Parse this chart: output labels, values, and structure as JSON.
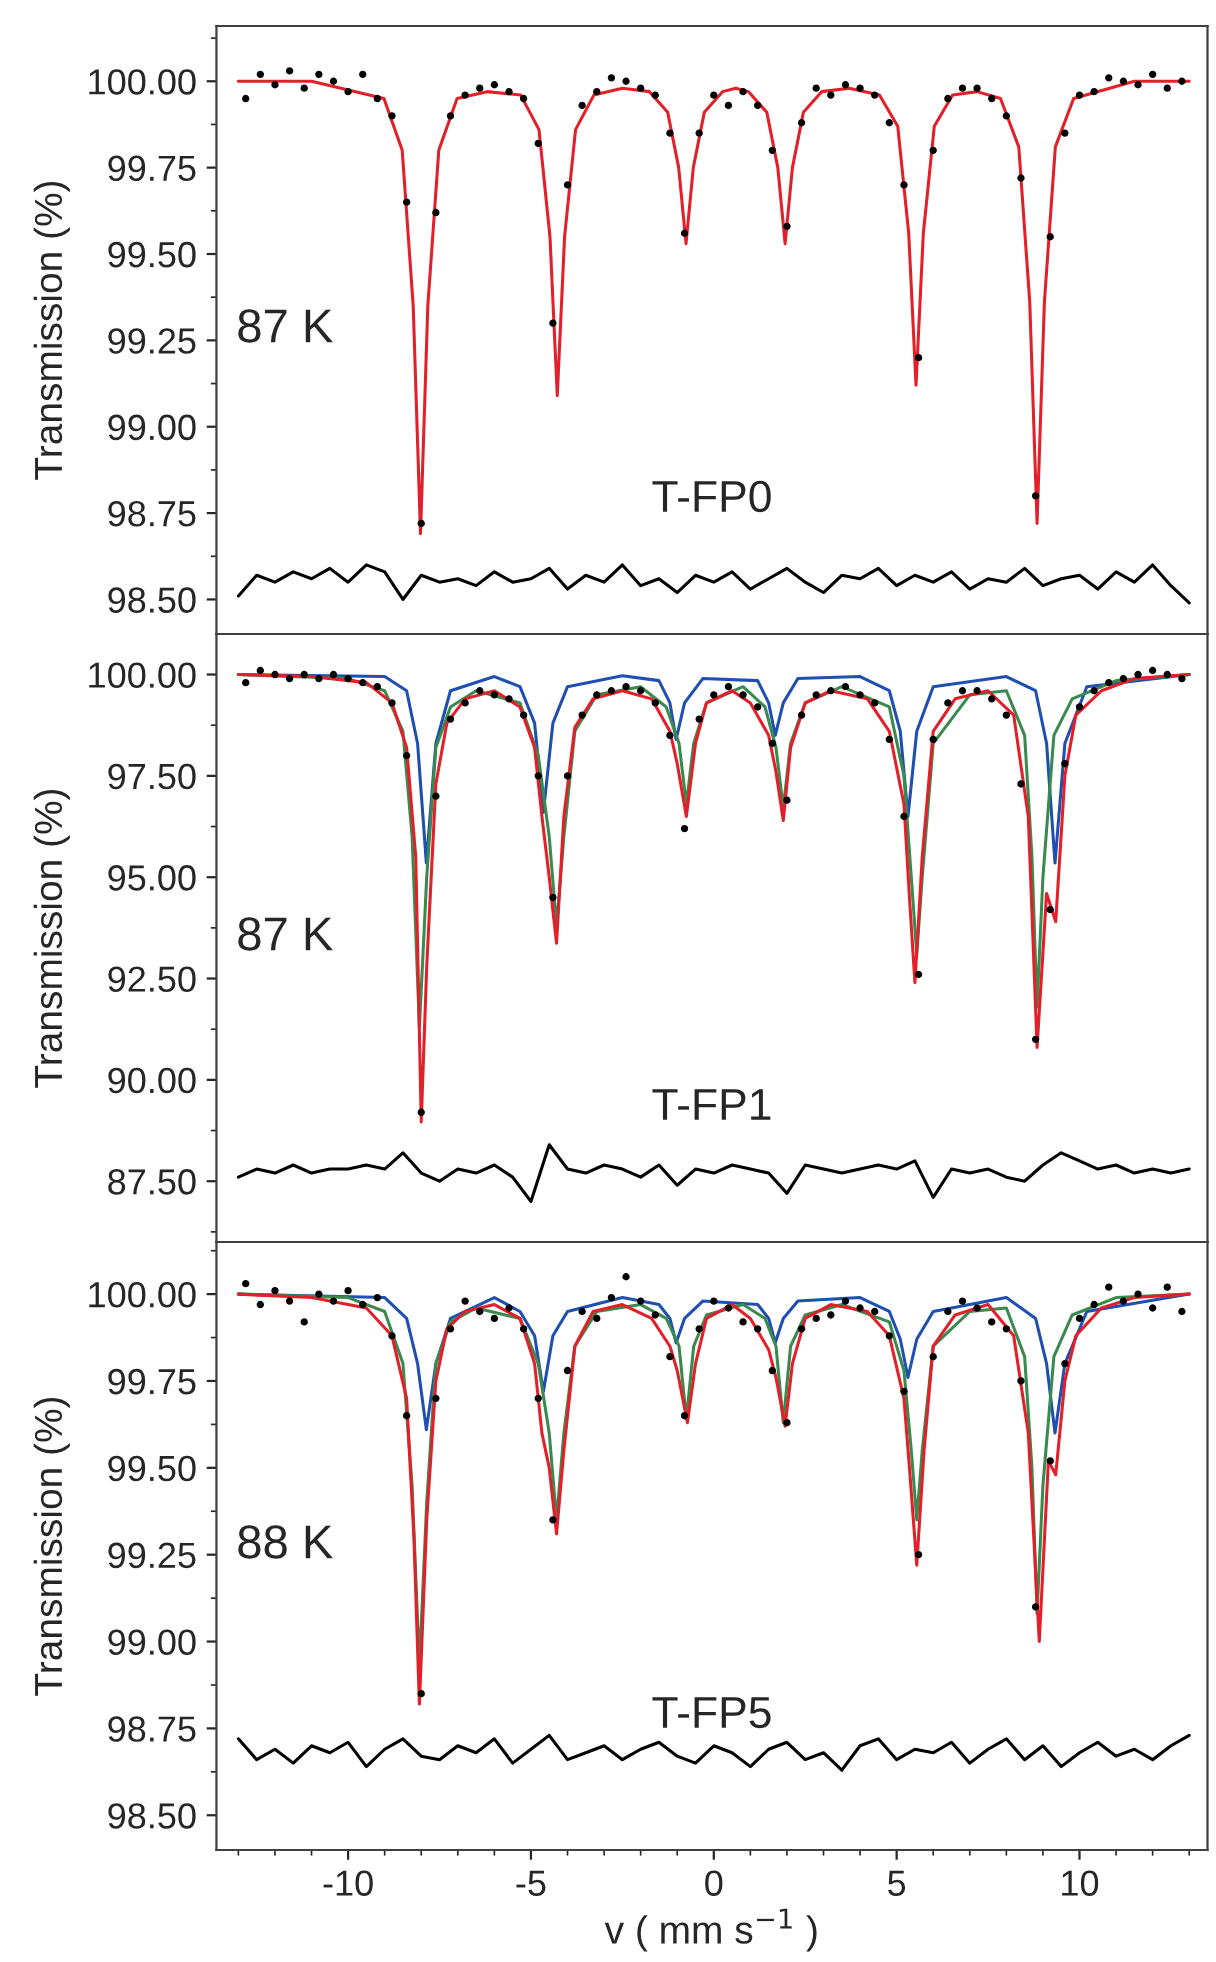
{
  "chart_data": [
    {
      "type": "line",
      "ylabel": "Transmission (%)",
      "xlim": [
        -13.6,
        13.5
      ],
      "xticks": [
        -10,
        -5,
        0,
        5,
        10
      ],
      "tick_labels": "y",
      "ylim": [
        98.4,
        100.16
      ],
      "yticks": [
        {
          "value": 98.5,
          "label": "98.50"
        },
        {
          "value": 98.75,
          "label": "98.75"
        },
        {
          "value": 99.0,
          "label": "99.00"
        },
        {
          "value": 99.25,
          "label": "99.25"
        },
        {
          "value": 99.5,
          "label": "99.50"
        },
        {
          "value": 99.75,
          "label": "99.75"
        },
        {
          "value": 100.0,
          "label": "100.00"
        }
      ],
      "annotations": [
        "87 K",
        "T-FP0"
      ],
      "series": [
        {
          "type": "scatter",
          "color": "#000000",
          "x": [
            -12.8,
            -12.4,
            -12.0,
            -11.6,
            -11.2,
            -10.8,
            -10.4,
            -10.0,
            -9.6,
            -9.2,
            -8.8,
            -8.4,
            -8.0,
            -7.6,
            -7.2,
            -6.8,
            -6.4,
            -6.0,
            -5.6,
            -5.2,
            -4.8,
            -4.4,
            -4.0,
            -3.6,
            -3.2,
            -2.8,
            -2.4,
            -2.0,
            -1.6,
            -1.2,
            -0.8,
            -0.4,
            0.0,
            0.4,
            0.8,
            1.2,
            1.6,
            2.0,
            2.4,
            2.8,
            3.2,
            3.6,
            4.0,
            4.4,
            4.8,
            5.2,
            5.6,
            6.0,
            6.4,
            6.8,
            7.2,
            7.6,
            8.0,
            8.4,
            8.8,
            9.2,
            9.6,
            10.0,
            10.4,
            10.8,
            11.2,
            11.6,
            12.0,
            12.4,
            12.8
          ],
          "values": [
            99.95,
            100.02,
            99.99,
            100.03,
            99.98,
            100.02,
            100.0,
            99.97,
            100.02,
            99.95,
            99.9,
            99.65,
            98.72,
            99.62,
            99.9,
            99.96,
            99.98,
            99.99,
            99.97,
            99.95,
            99.82,
            99.3,
            99.7,
            99.93,
            99.97,
            100.01,
            100.0,
            99.98,
            99.96,
            99.85,
            99.56,
            99.85,
            99.96,
            99.93,
            99.97,
            99.93,
            99.8,
            99.58,
            99.88,
            99.98,
            99.96,
            99.99,
            99.98,
            99.96,
            99.88,
            99.7,
            99.2,
            99.8,
            99.95,
            99.98,
            99.98,
            99.95,
            99.9,
            99.72,
            98.8,
            99.55,
            99.85,
            99.96,
            99.97,
            100.01,
            100.0,
            99.99,
            100.02,
            99.98,
            100.0
          ]
        },
        {
          "type": "line",
          "color": "#e3202a",
          "x": [
            -13,
            -11,
            -9.02,
            -8.52,
            -8.22,
            -8.02,
            -7.82,
            -7.52,
            -7.02,
            -6.2,
            -5.28,
            -4.78,
            -4.48,
            -4.28,
            -4.08,
            -3.78,
            -3.28,
            -2.5,
            -1.76,
            -1.26,
            -0.96,
            -0.76,
            -0.56,
            -0.26,
            0.24,
            0.6,
            0.95,
            1.45,
            1.75,
            1.95,
            2.15,
            2.45,
            2.95,
            3.7,
            4.53,
            5.03,
            5.33,
            5.53,
            5.73,
            6.03,
            6.53,
            7.2,
            7.84,
            8.34,
            8.64,
            8.84,
            9.04,
            9.34,
            9.84,
            11.5,
            13
          ],
          "values": [
            100.0,
            100.0,
            99.95,
            99.8,
            99.35,
            98.69,
            99.35,
            99.8,
            99.95,
            99.97,
            99.96,
            99.86,
            99.55,
            99.09,
            99.55,
            99.86,
            99.96,
            99.98,
            99.97,
            99.91,
            99.75,
            99.53,
            99.75,
            99.91,
            99.97,
            99.98,
            99.97,
            99.91,
            99.75,
            99.53,
            99.75,
            99.91,
            99.97,
            99.98,
            99.96,
            99.87,
            99.56,
            99.12,
            99.56,
            99.87,
            99.96,
            99.97,
            99.95,
            99.81,
            99.36,
            98.72,
            99.36,
            99.81,
            99.95,
            100.0,
            100.0
          ]
        },
        {
          "type": "line",
          "color": "#000000",
          "x": [
            -13,
            -12.5,
            -12,
            -11.5,
            -11,
            -10.5,
            -10,
            -9.5,
            -9,
            -8.5,
            -8,
            -7.5,
            -7,
            -6.5,
            -6,
            -5.5,
            -5,
            -4.5,
            -4,
            -3.5,
            -3,
            -2.5,
            -2,
            -1.5,
            -1,
            -0.5,
            0,
            0.5,
            1,
            1.5,
            2,
            2.5,
            3,
            3.5,
            4,
            4.5,
            5,
            5.5,
            6,
            6.5,
            7,
            7.5,
            8,
            8.5,
            9,
            9.5,
            10,
            10.5,
            11,
            11.5,
            12,
            12.5,
            13
          ],
          "values": [
            98.51,
            98.57,
            98.55,
            98.58,
            98.56,
            98.59,
            98.55,
            98.6,
            98.58,
            98.5,
            98.57,
            98.55,
            98.56,
            98.54,
            98.58,
            98.55,
            98.56,
            98.59,
            98.53,
            98.57,
            98.55,
            98.6,
            98.54,
            98.56,
            98.52,
            98.57,
            98.55,
            98.58,
            98.53,
            98.56,
            98.59,
            98.55,
            98.52,
            98.57,
            98.56,
            98.59,
            98.54,
            98.57,
            98.55,
            98.58,
            98.53,
            98.56,
            98.55,
            98.59,
            98.54,
            98.56,
            98.57,
            98.53,
            98.58,
            98.55,
            98.6,
            98.54,
            98.49
          ]
        }
      ]
    },
    {
      "type": "line",
      "ylabel": "Transmission (%)",
      "xlim": [
        -13.6,
        13.5
      ],
      "xticks": [
        -10,
        -5,
        0,
        5,
        10
      ],
      "tick_labels": "y",
      "ylim": [
        86.0,
        101.0
      ],
      "yticks": [
        {
          "value": 87.5,
          "label": "87.50"
        },
        {
          "value": 90.0,
          "label": "90.00"
        },
        {
          "value": 92.5,
          "label": "92.50"
        },
        {
          "value": 95.0,
          "label": "95.00"
        },
        {
          "value": 97.5,
          "label": "97.50"
        },
        {
          "value": 100.0,
          "label": "100.00"
        }
      ],
      "annotations": [
        "87 K",
        "T-FP1"
      ],
      "series": [
        {
          "type": "scatter",
          "color": "#000000",
          "x": [
            -12.8,
            -12.4,
            -12.0,
            -11.6,
            -11.2,
            -10.8,
            -10.4,
            -10.0,
            -9.6,
            -9.2,
            -8.8,
            -8.4,
            -8.0,
            -7.6,
            -7.2,
            -6.8,
            -6.4,
            -6.0,
            -5.6,
            -5.2,
            -4.8,
            -4.4,
            -4.0,
            -3.6,
            -3.2,
            -2.8,
            -2.4,
            -2.0,
            -1.6,
            -1.2,
            -0.8,
            -0.4,
            0.0,
            0.4,
            0.8,
            1.2,
            1.6,
            2.0,
            2.4,
            2.8,
            3.2,
            3.6,
            4.0,
            4.4,
            4.8,
            5.2,
            5.6,
            6.0,
            6.4,
            6.8,
            7.2,
            7.6,
            8.0,
            8.4,
            8.8,
            9.2,
            9.6,
            10.0,
            10.4,
            10.8,
            11.2,
            11.6,
            12.0,
            12.4,
            12.8
          ],
          "values": [
            99.8,
            100.1,
            100.0,
            99.9,
            100.0,
            99.9,
            100.0,
            99.9,
            99.8,
            99.7,
            99.3,
            98.0,
            89.2,
            97.0,
            98.9,
            99.3,
            99.6,
            99.5,
            99.4,
            99.0,
            97.5,
            94.5,
            97.5,
            99.0,
            99.5,
            99.6,
            99.7,
            99.6,
            99.3,
            98.5,
            96.2,
            98.9,
            99.5,
            99.7,
            99.5,
            99.2,
            98.3,
            96.9,
            99.0,
            99.5,
            99.6,
            99.7,
            99.5,
            99.3,
            98.4,
            96.5,
            92.6,
            98.4,
            99.3,
            99.6,
            99.6,
            99.4,
            99.0,
            97.3,
            91.0,
            94.2,
            97.8,
            99.2,
            99.6,
            99.8,
            99.9,
            100.0,
            100.1,
            100.0,
            99.9
          ]
        },
        {
          "type": "line",
          "color": "#1f4fb0",
          "x": [
            -13,
            -9,
            -8.4,
            -8.1,
            -7.86,
            -7.6,
            -7.2,
            -6,
            -5.3,
            -4.9,
            -4.66,
            -4.4,
            -4.0,
            -2.5,
            -1.5,
            -1.2,
            -1.03,
            -0.8,
            -0.3,
            1.2,
            1.5,
            1.68,
            1.9,
            2.3,
            4.0,
            4.8,
            5.1,
            5.31,
            5.55,
            6.0,
            8.0,
            8.8,
            9.1,
            9.33,
            9.6,
            10.2,
            13
          ],
          "values": [
            100.0,
            99.95,
            99.6,
            98.3,
            95.35,
            98.3,
            99.6,
            99.95,
            99.7,
            98.8,
            96.6,
            98.8,
            99.7,
            99.97,
            99.85,
            99.3,
            98.4,
            99.3,
            99.9,
            99.85,
            99.3,
            98.5,
            99.3,
            99.9,
            99.95,
            99.6,
            98.6,
            96.5,
            98.6,
            99.7,
            99.95,
            99.6,
            98.3,
            95.35,
            98.3,
            99.7,
            100.0
          ]
        },
        {
          "type": "line",
          "color": "#3a8a50",
          "x": [
            -13,
            -10,
            -9.0,
            -8.5,
            -8.25,
            -8.05,
            -7.85,
            -7.6,
            -7.2,
            -6.5,
            -5.3,
            -4.8,
            -4.5,
            -4.3,
            -4.1,
            -3.8,
            -3.2,
            -2.0,
            -1.3,
            -0.95,
            -0.75,
            -0.55,
            -0.2,
            0.8,
            1.4,
            1.7,
            1.9,
            2.1,
            2.5,
            3.5,
            4.8,
            5.2,
            5.4,
            5.55,
            5.7,
            6.0,
            7.0,
            8.0,
            8.5,
            8.7,
            8.84,
            9.0,
            9.3,
            9.8,
            11,
            13
          ],
          "values": [
            100.0,
            99.9,
            99.6,
            98.6,
            96.0,
            91.3,
            95.0,
            98.2,
            99.2,
            99.6,
            99.3,
            98.0,
            96.0,
            93.8,
            96.0,
            98.6,
            99.5,
            99.7,
            99.2,
            98.3,
            96.8,
            98.3,
            99.3,
            99.7,
            99.2,
            98.2,
            96.7,
            98.3,
            99.3,
            99.7,
            99.2,
            97.5,
            95.0,
            93.1,
            95.0,
            98.3,
            99.5,
            99.6,
            98.5,
            95.5,
            91.8,
            95.0,
            98.5,
            99.4,
            99.85,
            100.0
          ]
        },
        {
          "type": "line",
          "color": "#e3202a",
          "x": [
            -13,
            -11,
            -9.5,
            -8.8,
            -8.4,
            -8.15,
            -8.0,
            -7.85,
            -7.6,
            -7.3,
            -6.8,
            -6.0,
            -5.3,
            -4.9,
            -4.7,
            -4.5,
            -4.3,
            -4.1,
            -3.8,
            -3.3,
            -2.5,
            -1.7,
            -1.2,
            -1.0,
            -0.75,
            -0.5,
            -0.2,
            0.5,
            1.0,
            1.5,
            1.7,
            1.9,
            2.1,
            2.5,
            3.2,
            4.2,
            4.8,
            5.2,
            5.35,
            5.5,
            5.7,
            6.0,
            6.6,
            7.5,
            8.2,
            8.6,
            8.84,
            9.1,
            9.35,
            9.6,
            9.9,
            10.6,
            11.5,
            13
          ],
          "values": [
            100.0,
            99.95,
            99.8,
            99.3,
            98.2,
            95.5,
            88.96,
            92.8,
            97.3,
            98.8,
            99.4,
            99.6,
            99.2,
            98.2,
            96.5,
            95.0,
            93.37,
            96.5,
            98.7,
            99.4,
            99.6,
            99.4,
            98.6,
            97.8,
            96.5,
            98.3,
            99.3,
            99.6,
            99.3,
            98.5,
            97.6,
            96.4,
            98.2,
            99.3,
            99.6,
            99.4,
            98.6,
            96.8,
            94.5,
            92.4,
            95.5,
            98.6,
            99.4,
            99.6,
            99.0,
            96.5,
            90.8,
            94.6,
            93.9,
            97.5,
            99.0,
            99.6,
            99.9,
            100.0
          ]
        },
        {
          "type": "line",
          "color": "#000000",
          "x": [
            -13,
            -12.5,
            -12,
            -11.5,
            -11,
            -10.5,
            -10,
            -9.5,
            -9,
            -8.5,
            -8,
            -7.5,
            -7,
            -6.5,
            -6,
            -5.5,
            -5,
            -4.5,
            -4,
            -3.5,
            -3,
            -2.5,
            -2,
            -1.5,
            -1,
            -0.5,
            0,
            0.5,
            1,
            1.5,
            2,
            2.5,
            3,
            3.5,
            4,
            4.5,
            5,
            5.5,
            6,
            6.5,
            7,
            7.5,
            8,
            8.5,
            9,
            9.5,
            10,
            10.5,
            11,
            11.5,
            12,
            12.5,
            13
          ],
          "values": [
            87.6,
            87.8,
            87.7,
            87.9,
            87.7,
            87.8,
            87.8,
            87.9,
            87.8,
            88.2,
            87.7,
            87.5,
            87.8,
            87.7,
            87.9,
            87.6,
            87.0,
            88.4,
            87.8,
            87.7,
            87.9,
            87.8,
            87.6,
            87.9,
            87.4,
            87.8,
            87.7,
            87.9,
            87.8,
            87.7,
            87.2,
            87.9,
            87.8,
            87.7,
            87.8,
            87.9,
            87.8,
            88.0,
            87.1,
            87.8,
            87.7,
            87.8,
            87.6,
            87.5,
            87.9,
            88.2,
            88.0,
            87.8,
            87.9,
            87.7,
            87.8,
            87.7,
            87.8
          ]
        }
      ]
    },
    {
      "type": "line",
      "ylabel": "Transmission (%)",
      "xlabel": "v ( mm s$^{−1}$ )",
      "xlim": [
        -13.6,
        13.5
      ],
      "xticks": [
        -10,
        -5,
        0,
        5,
        10
      ],
      "ylim": [
        98.4,
        100.15
      ],
      "yticks": [
        {
          "value": 98.5,
          "label": "98.50"
        },
        {
          "value": 98.75,
          "label": "98.75"
        },
        {
          "value": 99.0,
          "label": "99.00"
        },
        {
          "value": 99.25,
          "label": "99.25"
        },
        {
          "value": 99.5,
          "label": "99.50"
        },
        {
          "value": 99.75,
          "label": "99.75"
        },
        {
          "value": 100.0,
          "label": "100.00"
        }
      ],
      "annotations": [
        "88 K",
        "T-FP5"
      ],
      "series": [
        {
          "type": "scatter",
          "color": "#000000",
          "x": [
            -12.8,
            -12.4,
            -12.0,
            -11.6,
            -11.2,
            -10.8,
            -10.4,
            -10.0,
            -9.6,
            -9.2,
            -8.8,
            -8.4,
            -8.0,
            -7.6,
            -7.2,
            -6.8,
            -6.4,
            -6.0,
            -5.6,
            -5.2,
            -4.8,
            -4.4,
            -4.0,
            -3.6,
            -3.2,
            -2.8,
            -2.4,
            -2.0,
            -1.6,
            -1.2,
            -0.8,
            -0.4,
            0.0,
            0.4,
            0.8,
            1.2,
            1.6,
            2.0,
            2.4,
            2.8,
            3.2,
            3.6,
            4.0,
            4.4,
            4.8,
            5.2,
            5.6,
            6.0,
            6.4,
            6.8,
            7.2,
            7.6,
            8.0,
            8.4,
            8.8,
            9.2,
            9.6,
            10.0,
            10.4,
            10.8,
            11.2,
            11.6,
            12.0,
            12.4,
            12.8
          ],
          "values": [
            100.03,
            99.97,
            100.01,
            99.98,
            99.92,
            100.0,
            99.98,
            100.01,
            99.97,
            99.99,
            99.88,
            99.65,
            98.85,
            99.7,
            99.9,
            99.98,
            99.95,
            99.93,
            99.96,
            99.9,
            99.7,
            99.35,
            99.78,
            99.95,
            99.93,
            99.99,
            100.05,
            99.98,
            99.94,
            99.82,
            99.65,
            99.9,
            99.98,
            99.96,
            99.92,
            99.9,
            99.78,
            99.63,
            99.9,
            99.93,
            99.94,
            99.98,
            99.96,
            99.95,
            99.88,
            99.72,
            99.25,
            99.82,
            99.95,
            99.98,
            99.96,
            99.92,
            99.9,
            99.75,
            99.1,
            99.52,
            99.8,
            99.93,
            99.97,
            100.02,
            99.98,
            100.0,
            99.96,
            100.02,
            99.95
          ]
        },
        {
          "type": "line",
          "color": "#1f4fb0",
          "x": [
            -13,
            -9,
            -8.4,
            -8.1,
            -7.86,
            -7.6,
            -7.2,
            -6,
            -5.3,
            -4.9,
            -4.66,
            -4.4,
            -4.0,
            -2.5,
            -1.5,
            -1.2,
            -1.03,
            -0.8,
            -0.3,
            1.2,
            1.5,
            1.68,
            1.9,
            2.3,
            4.0,
            4.8,
            5.1,
            5.31,
            5.55,
            6.0,
            8.0,
            8.8,
            9.1,
            9.33,
            9.6,
            10.2,
            13
          ],
          "values": [
            100.0,
            99.99,
            99.93,
            99.8,
            99.61,
            99.8,
            99.93,
            99.99,
            99.95,
            99.88,
            99.72,
            99.88,
            99.95,
            99.99,
            99.97,
            99.93,
            99.86,
            99.93,
            99.98,
            99.97,
            99.93,
            99.86,
            99.93,
            99.98,
            99.99,
            99.95,
            99.87,
            99.76,
            99.87,
            99.95,
            99.99,
            99.93,
            99.8,
            99.6,
            99.8,
            99.95,
            100.0
          ]
        },
        {
          "type": "line",
          "color": "#3a8a50",
          "x": [
            -13,
            -10,
            -9.0,
            -8.5,
            -8.25,
            -8.05,
            -7.85,
            -7.6,
            -7.2,
            -6.5,
            -5.3,
            -4.8,
            -4.5,
            -4.3,
            -4.1,
            -3.8,
            -3.2,
            -2.0,
            -1.3,
            -0.95,
            -0.75,
            -0.55,
            -0.2,
            0.8,
            1.4,
            1.7,
            1.9,
            2.1,
            2.5,
            3.5,
            4.8,
            5.2,
            5.4,
            5.55,
            5.7,
            6.0,
            7.0,
            8.0,
            8.5,
            8.7,
            8.84,
            9.0,
            9.3,
            9.8,
            11,
            13
          ],
          "values": [
            100.0,
            99.99,
            99.95,
            99.8,
            99.45,
            98.93,
            99.4,
            99.8,
            99.92,
            99.96,
            99.93,
            99.8,
            99.6,
            99.35,
            99.6,
            99.85,
            99.95,
            99.97,
            99.93,
            99.85,
            99.64,
            99.85,
            99.94,
            99.97,
            99.93,
            99.85,
            99.63,
            99.85,
            99.94,
            99.97,
            99.92,
            99.78,
            99.55,
            99.35,
            99.55,
            99.85,
            99.95,
            99.96,
            99.82,
            99.5,
            99.08,
            99.45,
            99.82,
            99.94,
            99.99,
            100.0
          ]
        },
        {
          "type": "line",
          "color": "#e3202a",
          "x": [
            -13,
            -11,
            -9.5,
            -8.8,
            -8.4,
            -8.2,
            -8.05,
            -7.85,
            -7.6,
            -7.3,
            -6.8,
            -6.0,
            -5.3,
            -4.9,
            -4.7,
            -4.5,
            -4.3,
            -4.1,
            -3.8,
            -3.3,
            -2.5,
            -1.7,
            -1.2,
            -1.0,
            -0.72,
            -0.5,
            -0.2,
            0.5,
            1.0,
            1.5,
            1.7,
            1.95,
            2.15,
            2.5,
            3.2,
            4.2,
            4.8,
            5.2,
            5.35,
            5.55,
            5.75,
            6.0,
            6.6,
            7.5,
            8.2,
            8.6,
            8.9,
            9.15,
            9.35,
            9.6,
            9.9,
            10.6,
            11.5,
            13
          ],
          "values": [
            100.0,
            99.99,
            99.96,
            99.88,
            99.7,
            99.3,
            98.82,
            99.35,
            99.75,
            99.9,
            99.95,
            99.97,
            99.93,
            99.8,
            99.6,
            99.5,
            99.31,
            99.55,
            99.85,
            99.95,
            99.97,
            99.93,
            99.85,
            99.78,
            99.63,
            99.8,
            99.93,
            99.97,
            99.93,
            99.84,
            99.76,
            99.62,
            99.8,
            99.93,
            99.97,
            99.95,
            99.88,
            99.7,
            99.5,
            99.22,
            99.55,
            99.85,
            99.94,
            99.97,
            99.88,
            99.6,
            99.0,
            99.52,
            99.48,
            99.75,
            99.88,
            99.96,
            99.99,
            100.0
          ]
        },
        {
          "type": "line",
          "color": "#000000",
          "x": [
            -13,
            -12.5,
            -12,
            -11.5,
            -11,
            -10.5,
            -10,
            -9.5,
            -9,
            -8.5,
            -8,
            -7.5,
            -7,
            -6.5,
            -6,
            -5.5,
            -5,
            -4.5,
            -4,
            -3.5,
            -3,
            -2.5,
            -2,
            -1.5,
            -1,
            -0.5,
            0,
            0.5,
            1,
            1.5,
            2,
            2.5,
            3,
            3.5,
            4,
            4.5,
            5,
            5.5,
            6,
            6.5,
            7,
            7.5,
            8,
            8.5,
            9,
            9.5,
            10,
            10.5,
            11,
            11.5,
            12,
            12.5,
            13
          ],
          "values": [
            98.72,
            98.66,
            98.69,
            98.65,
            98.7,
            98.68,
            98.71,
            98.64,
            98.69,
            98.72,
            98.67,
            98.66,
            98.7,
            98.68,
            98.72,
            98.65,
            98.69,
            98.73,
            98.66,
            98.68,
            98.7,
            98.66,
            98.69,
            98.71,
            98.67,
            98.65,
            98.7,
            98.68,
            98.64,
            98.69,
            98.71,
            98.66,
            98.68,
            98.63,
            98.7,
            98.72,
            98.66,
            98.69,
            98.68,
            98.71,
            98.65,
            98.69,
            98.72,
            98.66,
            98.7,
            98.64,
            98.68,
            98.71,
            98.67,
            98.69,
            98.66,
            98.7,
            98.73
          ]
        }
      ]
    }
  ]
}
